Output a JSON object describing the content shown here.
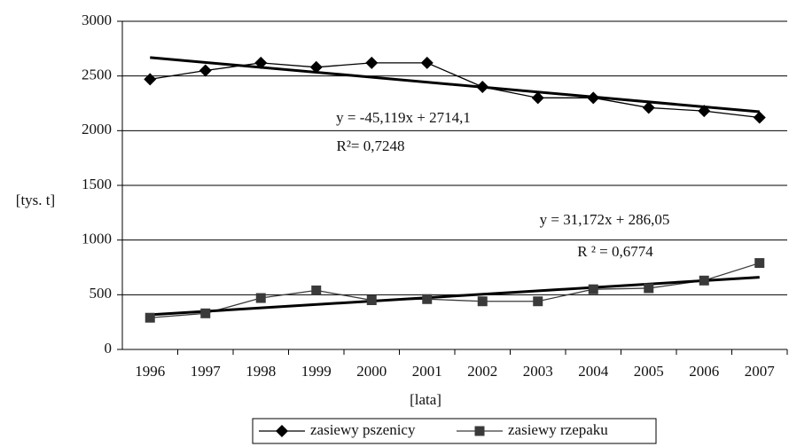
{
  "chart_data": {
    "type": "line",
    "y_label": "[tys. t]",
    "x_label": "[lata]",
    "categories": [
      "1996",
      "1997",
      "1998",
      "1999",
      "2000",
      "2001",
      "2002",
      "2003",
      "2004",
      "2005",
      "2006",
      "2007"
    ],
    "ylim": [
      0,
      3000
    ],
    "yticks": [
      0,
      500,
      1000,
      1500,
      2000,
      2500,
      3000
    ],
    "grid": true,
    "legend": "bottom",
    "series": [
      {
        "name": "zasiewy pszenicy",
        "color": "#000000",
        "marker": "diamond",
        "values": [
          2470,
          2550,
          2620,
          2580,
          2620,
          2620,
          2400,
          2300,
          2300,
          2210,
          2180,
          2120
        ],
        "trendline": {
          "slope": -45.119,
          "intercept": 2714.1,
          "equation": "y = -45,119x + 2714,1",
          "r2_label": "R²= 0,7248"
        }
      },
      {
        "name": "zasiewy rzepaku",
        "color": "#3a3a3a",
        "marker": "square",
        "values": [
          290,
          330,
          470,
          540,
          450,
          460,
          440,
          440,
          550,
          560,
          630,
          790
        ],
        "trendline": {
          "slope": 31.172,
          "intercept": 286.05,
          "equation": "y = 31,172x + 286,05",
          "r2_label": "R ² = 0,6774"
        }
      }
    ]
  }
}
